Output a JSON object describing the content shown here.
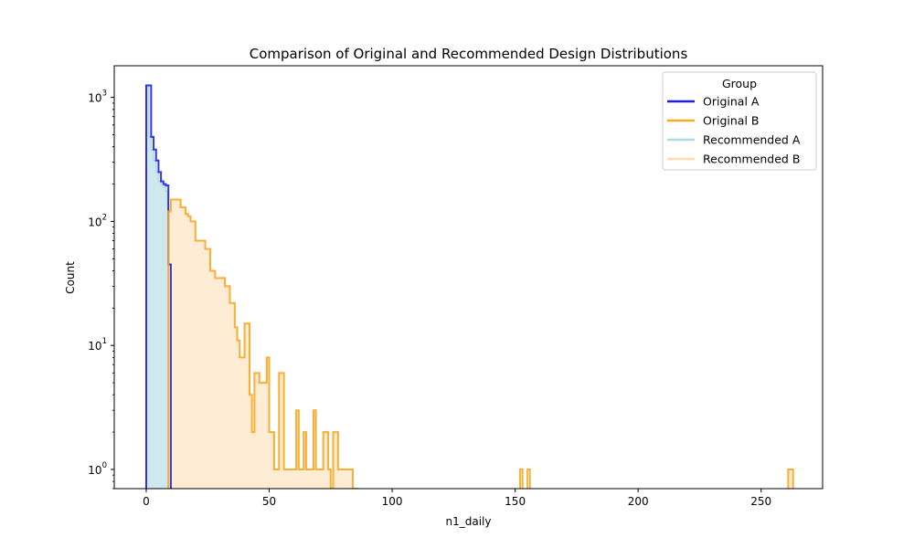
{
  "chart_data": {
    "type": "histogram-step",
    "title": "Comparison of Original and Recommended Design Distributions",
    "xlabel": "n1_daily",
    "ylabel": "Count",
    "xlim": [
      -13,
      275
    ],
    "ylim": [
      0.7,
      1800
    ],
    "yscale": "log",
    "x_ticks": [
      0,
      50,
      100,
      150,
      200,
      250
    ],
    "x_tick_labels": [
      "0",
      "50",
      "100",
      "150",
      "200",
      "250"
    ],
    "y_ticks": [
      1,
      10,
      100,
      1000
    ],
    "y_tick_labels": [
      {
        "base": "10",
        "exp": "0"
      },
      {
        "base": "10",
        "exp": "1"
      },
      {
        "base": "10",
        "exp": "2"
      },
      {
        "base": "10",
        "exp": "3"
      }
    ],
    "legend": {
      "title": "Group",
      "placement": "top-right",
      "entries": [
        {
          "label": "Original A",
          "color": "#1f1fdc",
          "width": 2.5
        },
        {
          "label": "Original B",
          "color": "#f9a825",
          "width": 2.5
        },
        {
          "label": "Recommended A",
          "color": "#add8e6",
          "width": 2.5
        },
        {
          "label": "Recommended B",
          "color": "#ffdcb0",
          "width": 2.5
        }
      ]
    },
    "series": [
      {
        "name": "Original A",
        "style": "step",
        "color": "#1f1fdc",
        "edges": [
          0,
          1,
          2,
          3,
          4,
          5,
          6,
          7,
          8,
          9,
          10
        ],
        "counts": [
          1250,
          1250,
          480,
          380,
          310,
          250,
          210,
          200,
          195,
          45
        ]
      },
      {
        "name": "Original B",
        "style": "step",
        "color": "#f9a825",
        "edges": [
          9,
          10,
          12,
          14,
          16,
          17,
          18,
          20,
          22,
          24,
          26,
          28,
          30,
          32,
          34,
          36,
          37,
          38,
          40,
          42,
          43,
          44,
          46,
          48,
          49,
          50,
          52,
          54,
          56,
          60,
          61,
          62,
          64,
          65,
          66,
          68,
          69,
          72,
          74,
          75,
          76,
          78,
          80,
          82,
          84,
          86
        ],
        "counts": [
          120,
          150,
          150,
          130,
          115,
          110,
          100,
          70,
          70,
          60,
          40,
          35,
          35,
          30,
          22,
          14,
          11,
          8,
          15,
          4,
          2,
          6,
          5,
          5,
          8,
          2,
          1,
          6,
          1,
          1,
          3,
          1,
          2,
          1,
          1,
          3,
          1,
          2,
          1,
          0.7,
          2,
          1,
          1,
          1,
          0.7
        ],
        "outliers": [
          {
            "start": 152,
            "end": 153,
            "count": 1
          },
          {
            "start": 155,
            "end": 156,
            "count": 1
          },
          {
            "start": 261,
            "end": 263,
            "count": 1
          }
        ]
      },
      {
        "name": "Recommended A",
        "style": "fill",
        "color": "#add8e6",
        "fill": "#add8e6",
        "fill_opacity": 0.6,
        "edges": [
          0,
          1,
          2,
          3,
          4,
          5,
          6,
          7,
          8,
          9
        ],
        "counts": [
          1250,
          480,
          380,
          310,
          250,
          210,
          200,
          195,
          175
        ]
      },
      {
        "name": "Recommended B",
        "style": "fill",
        "color": "#ffdcb0",
        "fill": "#ffdcb0",
        "fill_opacity": 0.55,
        "edges": [
          9,
          10,
          12,
          14,
          16,
          17,
          18,
          20,
          22,
          24,
          26,
          28,
          30,
          32,
          34,
          36,
          37,
          38,
          40,
          42,
          43,
          44,
          46,
          48,
          49,
          50,
          52,
          54,
          56,
          60,
          61,
          62,
          64,
          65,
          66,
          68,
          69,
          72,
          74,
          75,
          76,
          78,
          80,
          82,
          84,
          86
        ],
        "counts": [
          120,
          150,
          150,
          130,
          115,
          110,
          100,
          70,
          70,
          60,
          40,
          35,
          35,
          30,
          22,
          14,
          11,
          8,
          15,
          4,
          2,
          6,
          5,
          5,
          8,
          2,
          1,
          6,
          1,
          1,
          3,
          1,
          2,
          1,
          1,
          3,
          1,
          2,
          1,
          0.7,
          2,
          1,
          1,
          1,
          0.7
        ],
        "outliers": [
          {
            "start": 261,
            "end": 263,
            "count": 1
          }
        ]
      }
    ]
  }
}
